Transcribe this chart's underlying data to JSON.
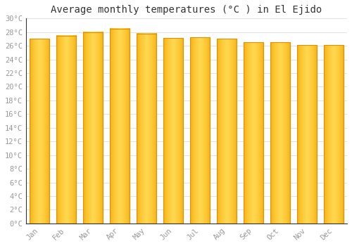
{
  "title": "Average monthly temperatures (°C ) in El Ejido",
  "months": [
    "Jan",
    "Feb",
    "Mar",
    "Apr",
    "May",
    "Jun",
    "Jul",
    "Aug",
    "Sep",
    "Oct",
    "Nov",
    "Dec"
  ],
  "values": [
    27.0,
    27.5,
    28.0,
    28.5,
    27.8,
    27.1,
    27.2,
    27.0,
    26.5,
    26.5,
    26.1,
    26.1
  ],
  "ylim": [
    0,
    30
  ],
  "ytick_step": 2,
  "bar_color_center": "#FFD035",
  "bar_color_edge": "#F5A800",
  "bar_edge_color": "#E09000",
  "background_color": "#FFFFFF",
  "grid_color": "#DDDDDD",
  "title_fontsize": 10,
  "tick_fontsize": 7.5,
  "tick_label_color": "#999999",
  "font_family": "monospace",
  "bar_width": 0.75
}
